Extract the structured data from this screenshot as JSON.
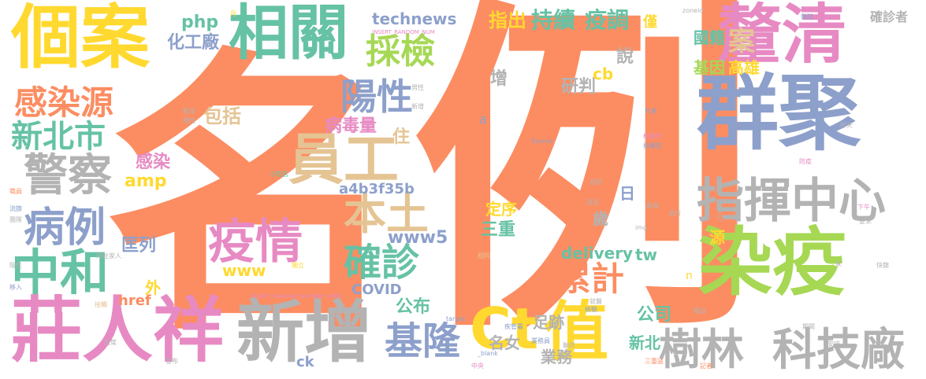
{
  "cloud": {
    "words": [
      {
        "text": "名",
        "color": "#fc8d62"
      },
      {
        "text": "例",
        "color": "#fc8d62"
      },
      {
        "text": "個案",
        "color": "#ffd92f"
      },
      {
        "text": "相關",
        "color": "#66c2a5"
      },
      {
        "text": "釐清",
        "color": "#e78ac3"
      },
      {
        "text": "群聚",
        "color": "#8da0cb"
      },
      {
        "text": "染疫",
        "color": "#a6d854"
      },
      {
        "text": "莊人祥",
        "color": "#e78ac3"
      },
      {
        "text": "新增",
        "color": "#b3b3b3"
      },
      {
        "text": "Ct",
        "color": "#ffd92f"
      },
      {
        "text": "值",
        "color": "#ffd92f"
      },
      {
        "text": "樹林",
        "color": "#b3b3b3"
      },
      {
        "text": "科技廠",
        "color": "#b3b3b3"
      },
      {
        "text": "指揮中心",
        "color": "#b3b3b3"
      },
      {
        "text": "員工",
        "color": "#e5c494"
      },
      {
        "text": "警察",
        "color": "#b3b3b3"
      },
      {
        "text": "感染源",
        "color": "#fc8d62"
      },
      {
        "text": "新北市",
        "color": "#66c2a5"
      },
      {
        "text": "病例",
        "color": "#8da0cb"
      },
      {
        "text": "中和",
        "color": "#66c2a5"
      },
      {
        "text": "疫情",
        "color": "#e78ac3"
      },
      {
        "text": "採檢",
        "color": "#a6d854"
      },
      {
        "text": "陽性",
        "color": "#8da0cb"
      },
      {
        "text": "本土",
        "color": "#e5c494"
      },
      {
        "text": "確診",
        "color": "#66c2a5"
      },
      {
        "text": "基隆",
        "color": "#8da0cb"
      },
      {
        "text": "累計",
        "color": "#fc8d62"
      },
      {
        "text": "持續",
        "color": "#66c2a5"
      },
      {
        "text": "疫調",
        "color": "#66c2a5"
      },
      {
        "text": "指出",
        "color": "#ffd92f"
      },
      {
        "text": "technews",
        "color": "#8da0cb"
      },
      {
        "text": "php",
        "color": "#66c2a5"
      },
      {
        "text": "化工廠",
        "color": "#8da0cb"
      },
      {
        "text": "包括",
        "color": "#e5c494"
      },
      {
        "text": "病毒量",
        "color": "#e78ac3"
      },
      {
        "text": "住",
        "color": "#e5c494"
      },
      {
        "text": "感染",
        "color": "#e78ac3"
      },
      {
        "text": "amp",
        "color": "#ffd92f"
      },
      {
        "text": "a4b3f35b",
        "color": "#8da0cb"
      },
      {
        "text": "www5",
        "color": "#8da0cb"
      },
      {
        "text": "www",
        "color": "#ffd92f"
      },
      {
        "text": "匡列",
        "color": "#8da0cb"
      },
      {
        "text": "外",
        "color": "#ffd92f"
      },
      {
        "text": "href",
        "color": "#fc8d62"
      },
      {
        "text": "COVID",
        "color": "#8da0cb"
      },
      {
        "text": "公布",
        "color": "#66c2a5"
      },
      {
        "text": "足跡",
        "color": "#b3b3b3"
      },
      {
        "text": "名女",
        "color": "#b3b3b3"
      },
      {
        "text": "業務",
        "color": "#b3b3b3"
      },
      {
        "text": "ck",
        "color": "#8da0cb"
      },
      {
        "text": "delivery",
        "color": "#66c2a5"
      },
      {
        "text": "tw",
        "color": "#66c2a5"
      },
      {
        "text": "公司",
        "color": "#66c2a5"
      },
      {
        "text": "新北",
        "color": "#66c2a5"
      },
      {
        "text": "研判",
        "color": "#b3b3b3"
      },
      {
        "text": "增",
        "color": "#b3b3b3"
      },
      {
        "text": "說",
        "color": "#b3b3b3"
      },
      {
        "text": "cb",
        "color": "#ffd92f"
      },
      {
        "text": "定序",
        "color": "#ffd92f"
      },
      {
        "text": "三重",
        "color": "#66c2a5"
      },
      {
        "text": "歲",
        "color": "#b3b3b3"
      },
      {
        "text": "日",
        "color": "#8da0cb"
      },
      {
        "text": "案",
        "color": "#e5c494"
      },
      {
        "text": "國籍",
        "color": "#66c2a5"
      },
      {
        "text": "基因",
        "color": "#a6d854"
      },
      {
        "text": "高雄",
        "color": "#ffd92f"
      },
      {
        "text": "確診者",
        "color": "#b3b3b3"
      },
      {
        "text": "高",
        "color": "#fc8d62"
      },
      {
        "text": "源",
        "color": "#ffd92f"
      },
      {
        "text": "僅",
        "color": "#ffd92f"
      },
      {
        "text": "INSERT_RANDOM_NUM",
        "color": "#e78ac3"
      },
      {
        "text": "INSERT_RANDOM_NUMBER_HERE",
        "color": "#e78ac3"
      },
      {
        "text": "zoneid",
        "color": "#b3b3b3"
      },
      {
        "text": "a",
        "color": "#8da0cb"
      },
      {
        "text": "n",
        "color": "#ffd92f"
      },
      {
        "text": "Source",
        "color": "#8da0cb"
      },
      {
        "text": "target",
        "color": "#8da0cb"
      },
      {
        "text": "_blank",
        "color": "#8da0cb"
      },
      {
        "text": "img",
        "color": "#b3b3b3"
      },
      {
        "text": "男性",
        "color": "#b3b3b3"
      },
      {
        "text": "新增",
        "color": "#b3b3b3"
      },
      {
        "text": "緊急",
        "color": "#b3b3b3"
      },
      {
        "text": "陽性",
        "color": "#b3b3b3"
      },
      {
        "text": "小吃店",
        "color": "#66c2a5"
      },
      {
        "text": "職員",
        "color": "#fc8d62"
      },
      {
        "text": "流篩",
        "color": "#8da0cb"
      },
      {
        "text": "團隊",
        "color": "#b3b3b3"
      },
      {
        "text": "陰性",
        "color": "#b3b3b3"
      },
      {
        "text": "移入",
        "color": "#8da0cb"
      },
      {
        "text": "接觸",
        "color": "#e5c494"
      },
      {
        "text": "首度",
        "color": "#b3b3b3"
      },
      {
        "text": "發布",
        "color": "#b3b3b3"
      },
      {
        "text": "同住家人",
        "color": "#b3b3b3"
      },
      {
        "text": "獨立",
        "color": "#ffd92f"
      },
      {
        "text": "相同",
        "color": "#e5c494"
      },
      {
        "text": "業務員",
        "color": "#8da0cb"
      },
      {
        "text": "疾管署",
        "color": "#8da0cb"
      },
      {
        "text": "聯防",
        "color": "#b3b3b3"
      },
      {
        "text": "中央",
        "color": "#e78ac3"
      },
      {
        "text": "三重區",
        "color": "#fc8d62"
      },
      {
        "text": "記者",
        "color": "#fc8d62"
      },
      {
        "text": "桃園市",
        "color": "#e78ac3"
      },
      {
        "text": "指揮官",
        "color": "#8da0cb"
      },
      {
        "text": "作者",
        "color": "#8da0cb"
      },
      {
        "text": "昨天",
        "color": "#b3b3b3"
      },
      {
        "text": "防疫",
        "color": "#e78ac3"
      },
      {
        "text": "超商",
        "color": "#b3b3b3"
      },
      {
        "text": "流行",
        "color": "#b3b3b3"
      },
      {
        "text": "快篩",
        "color": "#b3b3b3"
      },
      {
        "text": "電話",
        "color": "#b3b3b3"
      },
      {
        "text": "期間",
        "color": "#b3b3b3"
      },
      {
        "text": "安排",
        "color": "#b3b3b3"
      },
      {
        "text": "就醫",
        "color": "#b3b3b3"
      },
      {
        "text": "醫院",
        "color": "#8da0cb"
      },
      {
        "text": "月",
        "color": "#ffd92f"
      },
      {
        "text": "家",
        "color": "#b3b3b3"
      },
      {
        "text": "檢驗",
        "color": "#8da0cb"
      },
      {
        "text": "目前",
        "color": "#b3b3b3"
      },
      {
        "text": "自狀",
        "color": "#b3b3b3"
      },
      {
        "text": "要求",
        "color": "#b3b3b3"
      },
      {
        "text": "下午",
        "color": "#e78ac3"
      },
      {
        "text": "以",
        "color": "#8da0cb"
      }
    ]
  }
}
